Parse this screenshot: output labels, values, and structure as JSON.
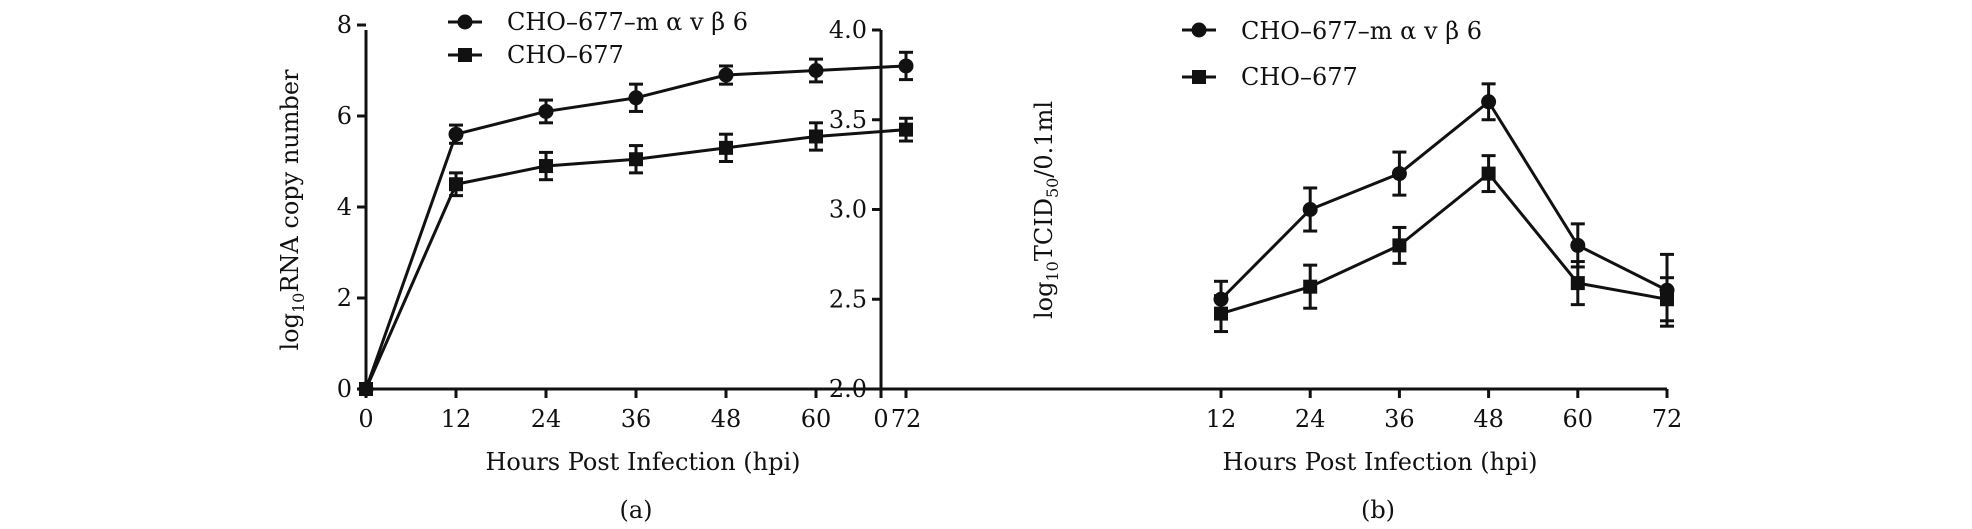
{
  "chart_data": [
    {
      "id": "a",
      "type": "line",
      "panel_label": "(a)",
      "title": "",
      "xlabel": "Hours Post Infection (hpi)",
      "ylabel": {
        "pre": "log",
        "sub": "10",
        "post": "RNA copy number"
      },
      "xlim": [
        0,
        72
      ],
      "ylim": [
        0,
        8
      ],
      "xticks": [
        0,
        12,
        24,
        36,
        48,
        60,
        72
      ],
      "yticks": [
        0,
        2,
        4,
        6,
        8
      ],
      "ytick_labels": [
        "0",
        "2",
        "4",
        "6",
        "8"
      ],
      "legend_position": "top-left",
      "series": [
        {
          "name": "CHO–677–m α v β 6",
          "marker": "circle",
          "x": [
            0,
            12,
            24,
            36,
            48,
            60,
            72
          ],
          "y": [
            0,
            5.6,
            6.1,
            6.4,
            6.9,
            7.0,
            7.1
          ],
          "err": [
            0,
            0.2,
            0.25,
            0.3,
            0.2,
            0.25,
            0.3
          ]
        },
        {
          "name": "CHO–677",
          "marker": "square",
          "x": [
            0,
            12,
            24,
            36,
            48,
            60,
            72
          ],
          "y": [
            0,
            4.5,
            4.9,
            5.05,
            5.3,
            5.55,
            5.7
          ],
          "err": [
            0,
            0.25,
            0.3,
            0.3,
            0.3,
            0.3,
            0.25
          ]
        }
      ]
    },
    {
      "id": "b",
      "type": "line",
      "panel_label": "(b)",
      "title": "",
      "xlabel": "Hours Post Infection (hpi)",
      "ylabel": {
        "pre": "log",
        "sub": "10",
        "mid": "TCID",
        "sub2": "50",
        "post": "/0.1ml"
      },
      "xlim": [
        0,
        72
      ],
      "ylim": [
        2.0,
        4.0
      ],
      "xticks": [
        0,
        12,
        24,
        36,
        48,
        60,
        72
      ],
      "yticks": [
        2.0,
        2.5,
        3.0,
        3.5,
        4.0
      ],
      "ytick_labels": [
        "2.0",
        "2.5",
        "3.0",
        "3.5",
        "4.0"
      ],
      "legend_position": "top-left",
      "series": [
        {
          "name": "CHO–677–m α v β 6",
          "marker": "circle",
          "x": [
            12,
            24,
            36,
            48,
            60,
            72
          ],
          "y": [
            2.5,
            3.0,
            3.2,
            3.6,
            2.8,
            2.55
          ],
          "err": [
            0.1,
            0.12,
            0.12,
            0.1,
            0.12,
            0.2
          ]
        },
        {
          "name": "CHO–677",
          "marker": "square",
          "x": [
            12,
            24,
            36,
            48,
            60,
            72
          ],
          "y": [
            2.42,
            2.57,
            2.8,
            3.2,
            2.59,
            2.5
          ],
          "err": [
            0.1,
            0.12,
            0.1,
            0.1,
            0.12,
            0.12
          ]
        }
      ]
    }
  ]
}
